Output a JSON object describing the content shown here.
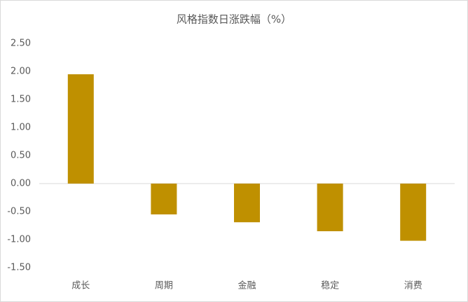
{
  "chart_data": {
    "type": "bar",
    "title": "风格指数日涨跌幅（%）",
    "categories": [
      "成长",
      "周期",
      "金融",
      "稳定",
      "消费"
    ],
    "values": [
      1.95,
      -0.55,
      -0.69,
      -0.85,
      -1.02
    ],
    "color": "#bf9000",
    "ylim": [
      -1.5,
      2.5
    ],
    "yticks": [
      {
        "value": 2.5,
        "label": "2.50"
      },
      {
        "value": 2.0,
        "label": "2.00"
      },
      {
        "value": 1.5,
        "label": "1.50"
      },
      {
        "value": 1.0,
        "label": "1.00"
      },
      {
        "value": 0.5,
        "label": "0.50"
      },
      {
        "value": 0,
        "label": "0.00"
      },
      {
        "value": -0.5,
        "label": "-0.50"
      },
      {
        "value": -1.0,
        "label": "-1.00"
      },
      {
        "value": -1.5,
        "label": "-1.50"
      }
    ],
    "grid": false
  }
}
